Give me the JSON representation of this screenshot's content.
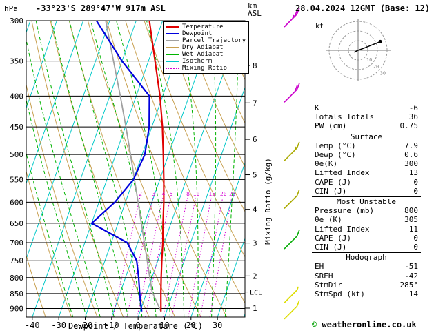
{
  "header": {
    "pressure_unit": "hPa",
    "station": "-33°23'S 289°47'W 917m ASL",
    "km_unit": "km",
    "asl_unit": "ASL",
    "datetime": "28.04.2024 12GMT (Base: 12)"
  },
  "axes": {
    "xlabel": "Dewpoint / Temperature (°C)",
    "mixing_ratio_label": "Mixing Ratio (g/kg)",
    "lcl_label": "LCL"
  },
  "legend": [
    {
      "label": "Temperature",
      "color": "#e00000",
      "dash": "solid"
    },
    {
      "label": "Dewpoint",
      "color": "#0000dd",
      "dash": "solid"
    },
    {
      "label": "Parcel Trajectory",
      "color": "#a0a0a0",
      "dash": "solid"
    },
    {
      "label": "Dry Adiabat",
      "color": "#c8a050",
      "dash": "solid"
    },
    {
      "label": "Wet Adiabat",
      "color": "#00b400",
      "dash": "dashed"
    },
    {
      "label": "Isotherm",
      "color": "#00c8c8",
      "dash": "solid"
    },
    {
      "label": "Mixing Ratio",
      "color": "#d400d4",
      "dash": "dotted"
    }
  ],
  "chart_data": {
    "type": "line",
    "subtype": "skewt-logp-sounding",
    "pressure_axis": {
      "unit": "hPa",
      "scale": "log",
      "top": 300,
      "bottom": 930,
      "ticks": [
        300,
        350,
        400,
        450,
        500,
        550,
        600,
        650,
        700,
        750,
        800,
        850,
        900
      ]
    },
    "temp_axis": {
      "unit": "°C",
      "ticks": [
        -40,
        -30,
        -20,
        -10,
        0,
        10,
        20,
        30
      ],
      "min_at_surface": -42.3,
      "max_at_surface": 40.4,
      "skew": 0.35
    },
    "km_axis": {
      "unit": "km ASL",
      "ticks": [
        1,
        2,
        3,
        4,
        5,
        6,
        7,
        8
      ]
    },
    "lcl_pressure": 845,
    "series": [
      {
        "name": "Parcel Trajectory",
        "color": "#a0a0a0",
        "width": 1.8,
        "points_p_t": [
          [
            910,
            7.9
          ],
          [
            845,
            2.0
          ],
          [
            800,
            -0.8
          ],
          [
            750,
            -4
          ],
          [
            700,
            -7.5
          ],
          [
            650,
            -11.2
          ],
          [
            600,
            -15.2
          ],
          [
            550,
            -19.6
          ],
          [
            500,
            -24.4
          ],
          [
            450,
            -29.8
          ],
          [
            400,
            -36
          ],
          [
            350,
            -43.2
          ],
          [
            300,
            -51.5
          ]
        ]
      },
      {
        "name": "Dewpoint",
        "color": "#0000dd",
        "width": 2.2,
        "points_p_t": [
          [
            910,
            0.6
          ],
          [
            850,
            -2.5
          ],
          [
            800,
            -5
          ],
          [
            750,
            -8
          ],
          [
            700,
            -14
          ],
          [
            650,
            -30
          ],
          [
            600,
            -24
          ],
          [
            550,
            -20
          ],
          [
            500,
            -19
          ],
          [
            450,
            -21
          ],
          [
            400,
            -25
          ],
          [
            350,
            -40
          ],
          [
            300,
            -55
          ]
        ]
      },
      {
        "name": "Temperature",
        "color": "#e00000",
        "width": 2.2,
        "points_p_t": [
          [
            910,
            7.9
          ],
          [
            850,
            5.5
          ],
          [
            800,
            3.5
          ],
          [
            750,
            1.5
          ],
          [
            700,
            -0.5
          ],
          [
            650,
            -3
          ],
          [
            600,
            -5.5
          ],
          [
            550,
            -8.5
          ],
          [
            500,
            -12
          ],
          [
            450,
            -16
          ],
          [
            400,
            -21
          ],
          [
            350,
            -27.5
          ],
          [
            300,
            -35
          ]
        ]
      }
    ],
    "background_lines": {
      "isotherms_c": {
        "color": "#00c8c8",
        "from": -110,
        "to": 40,
        "step": 10
      },
      "dry_adiabats_c": {
        "color": "#c8a050",
        "from": -30,
        "to": 170,
        "step": 10
      },
      "wet_adiabats_c": {
        "color": "#00b400",
        "from": -20,
        "to": 35,
        "step": 5
      },
      "mixing_ratio_g_kg": {
        "color": "#d400d4",
        "values": [
          2,
          3,
          4,
          5,
          8,
          10,
          15,
          20,
          25
        ],
        "label_pressure": 590
      }
    }
  },
  "wind_barbs": [
    {
      "pressure": 300,
      "speed_kt": 25,
      "color": "#cc00cc"
    },
    {
      "pressure": 400,
      "speed_kt": 20,
      "color": "#cc00cc"
    },
    {
      "pressure": 500,
      "speed_kt": 15,
      "color": "#aaaa00"
    },
    {
      "pressure": 600,
      "speed_kt": 10,
      "color": "#aaaa00"
    },
    {
      "pressure": 700,
      "speed_kt": 10,
      "color": "#00aa00"
    },
    {
      "pressure": 860,
      "speed_kt": 5,
      "color": "#dddd00"
    },
    {
      "pressure": 915,
      "speed_kt": 10,
      "color": "#dddd00"
    }
  ],
  "hodograph": {
    "unit_label": "kt",
    "rings": [
      10,
      20,
      30
    ],
    "ring_labels": [
      "10",
      "20",
      "30"
    ],
    "trace_kt": [
      [
        -4,
        2
      ],
      [
        0,
        0
      ],
      [
        8,
        -3
      ],
      [
        23,
        -9
      ]
    ],
    "marker_kt": [
      23,
      -9
    ]
  },
  "stats": {
    "top": [
      [
        "K",
        "-6"
      ],
      [
        "Totals Totals",
        "36"
      ],
      [
        "PW (cm)",
        "0.75"
      ]
    ],
    "sections": [
      {
        "title": "Surface",
        "rows": [
          [
            "Temp (°C)",
            "7.9"
          ],
          [
            "Dewp (°C)",
            "0.6"
          ],
          [
            "θe(K)",
            "300"
          ],
          [
            "Lifted Index",
            "13"
          ],
          [
            "CAPE (J)",
            "0"
          ],
          [
            "CIN (J)",
            "0"
          ]
        ]
      },
      {
        "title": "Most Unstable",
        "rows": [
          [
            "Pressure (mb)",
            "800"
          ],
          [
            "θe (K)",
            "305"
          ],
          [
            "Lifted Index",
            "11"
          ],
          [
            "CAPE (J)",
            "0"
          ],
          [
            "CIN (J)",
            "0"
          ]
        ]
      },
      {
        "title": "Hodograph",
        "rows": [
          [
            "EH",
            "-51"
          ],
          [
            "SREH",
            "-42"
          ],
          [
            "StmDir",
            "285°"
          ],
          [
            "StmSpd (kt)",
            "14"
          ]
        ]
      }
    ]
  },
  "footer": {
    "copyright_symbol": "©",
    "copyright_text": " weatheronline.co.uk"
  }
}
